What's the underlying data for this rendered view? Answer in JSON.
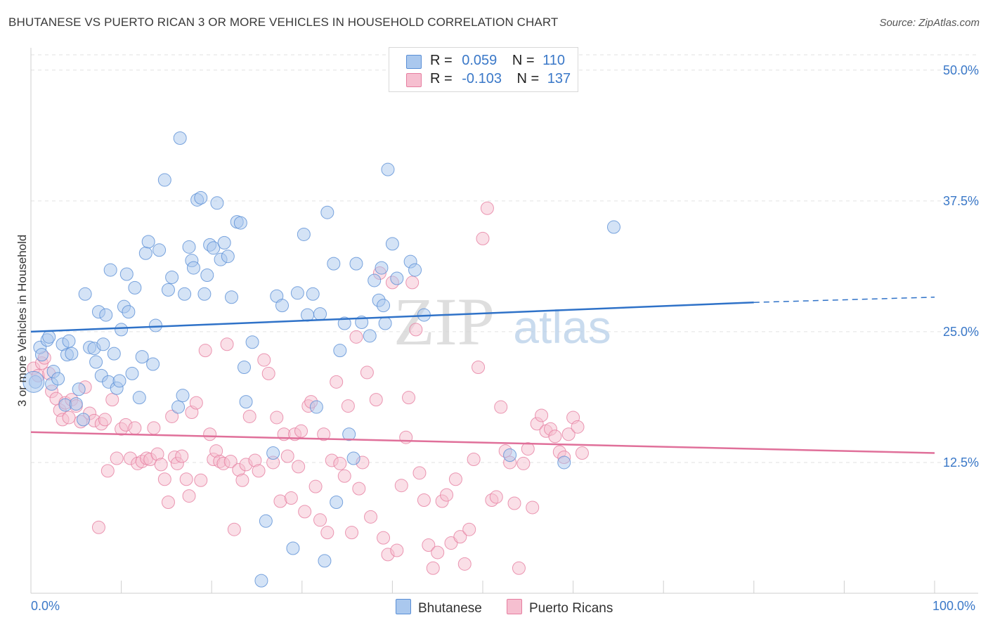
{
  "title": "BHUTANESE VS PUERTO RICAN 3 OR MORE VEHICLES IN HOUSEHOLD CORRELATION CHART",
  "source": "Source: ZipAtlas.com",
  "watermark": {
    "zip": "ZIP",
    "atlas": "atlas"
  },
  "legend": {
    "rows": [
      {
        "r_label": "R =",
        "r_value": "0.059",
        "n_label": "N =",
        "n_value": "110"
      },
      {
        "r_label": "R =",
        "r_value": "-0.103",
        "n_label": "N =",
        "n_value": "137"
      }
    ]
  },
  "colors": {
    "bhutanese_fill": "#aac8ee",
    "bhutanese_stroke": "#5a8fd6",
    "bhutanese_line": "#2f72c8",
    "puerto_fill": "#f6bfd0",
    "puerto_stroke": "#e67ea0",
    "puerto_line": "#e0709a",
    "axis_label": "#3a78c8",
    "grid": "#e2e2e2"
  },
  "chart_data": {
    "type": "scatter",
    "title": "BHUTANESE VS PUERTO RICAN 3 OR MORE VEHICLES IN HOUSEHOLD CORRELATION CHART",
    "xlabel": "",
    "ylabel": "3 or more Vehicles in Household",
    "xlim": [
      0,
      100
    ],
    "ylim": [
      0,
      52
    ],
    "x_tick_labels": [
      "0.0%",
      "100.0%"
    ],
    "y_ticks": [
      12.5,
      25.0,
      37.5,
      50.0
    ],
    "y_tick_labels": [
      "12.5%",
      "25.0%",
      "37.5%",
      "50.0%"
    ],
    "grid": true,
    "legend_position": "top-center",
    "series": [
      {
        "name": "Bhutanese",
        "r": 0.059,
        "n": 110,
        "trend": {
          "x": [
            0,
            80
          ],
          "y": [
            25.0,
            27.8
          ],
          "dashed_to": [
            100,
            28.3
          ]
        },
        "points": [
          [
            0.5,
            20.2
          ],
          [
            1.0,
            23.5
          ],
          [
            1.2,
            22.8
          ],
          [
            1.8,
            24.2
          ],
          [
            2.0,
            24.5
          ],
          [
            2.5,
            21.2
          ],
          [
            2.3,
            20.0
          ],
          [
            3.0,
            20.5
          ],
          [
            3.5,
            23.8
          ],
          [
            3.8,
            18.0
          ],
          [
            4.0,
            22.8
          ],
          [
            4.2,
            24.1
          ],
          [
            4.5,
            22.9
          ],
          [
            5.0,
            18.1
          ],
          [
            5.3,
            19.5
          ],
          [
            5.8,
            16.6
          ],
          [
            6.0,
            28.6
          ],
          [
            6.5,
            23.5
          ],
          [
            7.0,
            23.4
          ],
          [
            7.2,
            22.1
          ],
          [
            7.5,
            26.9
          ],
          [
            7.8,
            20.8
          ],
          [
            8.0,
            23.8
          ],
          [
            8.3,
            26.6
          ],
          [
            8.6,
            20.2
          ],
          [
            8.8,
            30.9
          ],
          [
            9.2,
            22.9
          ],
          [
            9.5,
            19.6
          ],
          [
            9.8,
            20.3
          ],
          [
            10.0,
            25.2
          ],
          [
            10.3,
            27.4
          ],
          [
            10.6,
            30.5
          ],
          [
            10.8,
            26.9
          ],
          [
            11.2,
            21.0
          ],
          [
            11.5,
            29.2
          ],
          [
            12.0,
            18.7
          ],
          [
            12.3,
            22.6
          ],
          [
            12.7,
            32.5
          ],
          [
            13.0,
            33.6
          ],
          [
            13.5,
            21.9
          ],
          [
            13.8,
            25.6
          ],
          [
            14.2,
            32.8
          ],
          [
            14.8,
            39.5
          ],
          [
            15.2,
            29.0
          ],
          [
            15.6,
            30.2
          ],
          [
            16.3,
            17.8
          ],
          [
            16.5,
            43.5
          ],
          [
            16.8,
            18.9
          ],
          [
            17.0,
            28.6
          ],
          [
            17.5,
            33.1
          ],
          [
            17.8,
            31.8
          ],
          [
            18.0,
            31.1
          ],
          [
            18.4,
            37.6
          ],
          [
            18.8,
            37.8
          ],
          [
            19.2,
            28.6
          ],
          [
            19.5,
            30.4
          ],
          [
            19.8,
            33.3
          ],
          [
            20.2,
            33.0
          ],
          [
            20.6,
            37.3
          ],
          [
            21.0,
            31.9
          ],
          [
            21.4,
            33.5
          ],
          [
            21.8,
            32.2
          ],
          [
            22.2,
            28.3
          ],
          [
            22.8,
            35.5
          ],
          [
            23.2,
            35.4
          ],
          [
            23.6,
            21.6
          ],
          [
            23.8,
            18.3
          ],
          [
            24.5,
            24.0
          ],
          [
            25.5,
            1.2
          ],
          [
            26.0,
            6.9
          ],
          [
            26.8,
            13.4
          ],
          [
            27.2,
            28.4
          ],
          [
            27.8,
            27.5
          ],
          [
            29.0,
            4.3
          ],
          [
            29.5,
            28.7
          ],
          [
            30.2,
            34.3
          ],
          [
            30.6,
            26.6
          ],
          [
            31.2,
            28.6
          ],
          [
            31.6,
            17.8
          ],
          [
            32.0,
            26.7
          ],
          [
            32.5,
            3.1
          ],
          [
            32.8,
            36.4
          ],
          [
            33.8,
            8.7
          ],
          [
            33.5,
            31.5
          ],
          [
            34.2,
            23.2
          ],
          [
            34.7,
            25.8
          ],
          [
            35.2,
            15.2
          ],
          [
            35.7,
            12.9
          ],
          [
            36.0,
            31.5
          ],
          [
            36.6,
            25.9
          ],
          [
            37.5,
            24.6
          ],
          [
            38.0,
            29.9
          ],
          [
            38.5,
            28.0
          ],
          [
            38.8,
            31.1
          ],
          [
            39.0,
            27.5
          ],
          [
            39.2,
            25.8
          ],
          [
            39.5,
            40.5
          ],
          [
            40.0,
            33.4
          ],
          [
            40.5,
            30.1
          ],
          [
            42.0,
            31.7
          ],
          [
            42.5,
            30.9
          ],
          [
            43.5,
            26.6
          ],
          [
            53.0,
            13.2
          ],
          [
            59.0,
            12.5
          ],
          [
            64.5,
            35.0
          ]
        ]
      },
      {
        "name": "Puerto Ricans",
        "r": -0.103,
        "n": 137,
        "trend": {
          "x": [
            0,
            100
          ],
          "y": [
            15.4,
            13.4
          ]
        },
        "points": [
          [
            0.3,
            21.5
          ],
          [
            0.8,
            20.8
          ],
          [
            1.2,
            22.0
          ],
          [
            1.5,
            22.5
          ],
          [
            2.0,
            21.0
          ],
          [
            2.3,
            19.3
          ],
          [
            2.8,
            18.6
          ],
          [
            3.2,
            17.5
          ],
          [
            3.5,
            16.6
          ],
          [
            3.8,
            18.2
          ],
          [
            4.2,
            16.8
          ],
          [
            4.5,
            18.5
          ],
          [
            5.0,
            17.9
          ],
          [
            5.5,
            16.4
          ],
          [
            6.0,
            19.7
          ],
          [
            6.5,
            17.2
          ],
          [
            7.0,
            16.5
          ],
          [
            7.5,
            6.3
          ],
          [
            7.8,
            16.2
          ],
          [
            8.2,
            16.6
          ],
          [
            8.5,
            11.7
          ],
          [
            9.0,
            18.5
          ],
          [
            9.5,
            12.9
          ],
          [
            10.0,
            15.7
          ],
          [
            10.5,
            16.1
          ],
          [
            11.0,
            12.9
          ],
          [
            11.5,
            15.8
          ],
          [
            11.8,
            12.4
          ],
          [
            12.3,
            12.6
          ],
          [
            12.8,
            12.9
          ],
          [
            13.2,
            12.8
          ],
          [
            13.6,
            15.8
          ],
          [
            14.0,
            13.3
          ],
          [
            14.4,
            12.3
          ],
          [
            14.8,
            10.9
          ],
          [
            15.2,
            8.7
          ],
          [
            15.6,
            16.9
          ],
          [
            15.9,
            13.0
          ],
          [
            16.2,
            12.4
          ],
          [
            16.7,
            13.1
          ],
          [
            17.2,
            10.9
          ],
          [
            17.5,
            9.3
          ],
          [
            17.8,
            17.3
          ],
          [
            18.3,
            18.2
          ],
          [
            18.8,
            10.8
          ],
          [
            19.3,
            23.2
          ],
          [
            19.8,
            15.2
          ],
          [
            20.2,
            12.8
          ],
          [
            20.5,
            13.6
          ],
          [
            20.9,
            12.6
          ],
          [
            21.3,
            12.4
          ],
          [
            21.7,
            23.8
          ],
          [
            22.1,
            12.6
          ],
          [
            22.5,
            6.1
          ],
          [
            23.0,
            11.8
          ],
          [
            23.4,
            10.8
          ],
          [
            23.8,
            12.3
          ],
          [
            24.2,
            16.9
          ],
          [
            24.8,
            12.7
          ],
          [
            25.2,
            11.7
          ],
          [
            25.8,
            22.3
          ],
          [
            26.3,
            21.0
          ],
          [
            26.8,
            12.5
          ],
          [
            27.2,
            16.8
          ],
          [
            27.6,
            8.8
          ],
          [
            28.0,
            15.2
          ],
          [
            28.4,
            13.1
          ],
          [
            28.8,
            9.1
          ],
          [
            29.2,
            15.2
          ],
          [
            29.6,
            12.1
          ],
          [
            29.9,
            15.5
          ],
          [
            30.3,
            7.8
          ],
          [
            30.7,
            17.9
          ],
          [
            31.0,
            18.3
          ],
          [
            31.5,
            10.2
          ],
          [
            32.0,
            7.0
          ],
          [
            32.4,
            15.2
          ],
          [
            32.8,
            5.8
          ],
          [
            33.3,
            12.7
          ],
          [
            33.8,
            20.2
          ],
          [
            34.2,
            12.4
          ],
          [
            34.7,
            11.2
          ],
          [
            35.1,
            17.9
          ],
          [
            35.5,
            5.8
          ],
          [
            36.0,
            24.5
          ],
          [
            36.3,
            10.0
          ],
          [
            36.7,
            12.5
          ],
          [
            37.2,
            21.1
          ],
          [
            37.6,
            7.3
          ],
          [
            38.2,
            18.5
          ],
          [
            38.6,
            30.6
          ],
          [
            39.0,
            5.3
          ],
          [
            39.5,
            3.7
          ],
          [
            40.0,
            29.7
          ],
          [
            40.5,
            4.1
          ],
          [
            41.0,
            10.3
          ],
          [
            41.5,
            14.9
          ],
          [
            41.8,
            18.7
          ],
          [
            42.2,
            29.7
          ],
          [
            42.6,
            25.2
          ],
          [
            43.0,
            11.5
          ],
          [
            43.5,
            8.9
          ],
          [
            44.0,
            4.6
          ],
          [
            44.5,
            2.4
          ],
          [
            45.0,
            3.9
          ],
          [
            45.5,
            8.8
          ],
          [
            46.0,
            9.4
          ],
          [
            46.5,
            4.8
          ],
          [
            47.0,
            10.9
          ],
          [
            47.5,
            5.4
          ],
          [
            48.0,
            2.8
          ],
          [
            48.5,
            6.1
          ],
          [
            49.0,
            12.8
          ],
          [
            49.5,
            21.6
          ],
          [
            50.0,
            33.9
          ],
          [
            50.5,
            36.8
          ],
          [
            51.0,
            8.9
          ],
          [
            51.5,
            9.2
          ],
          [
            52.0,
            17.8
          ],
          [
            52.5,
            13.6
          ],
          [
            53.0,
            12.5
          ],
          [
            53.5,
            8.6
          ],
          [
            54.0,
            2.4
          ],
          [
            54.5,
            12.4
          ],
          [
            55.0,
            13.8
          ],
          [
            55.5,
            8.2
          ],
          [
            56.0,
            16.2
          ],
          [
            56.5,
            17.0
          ],
          [
            57.0,
            15.5
          ],
          [
            57.5,
            15.7
          ],
          [
            58.0,
            15.0
          ],
          [
            58.5,
            13.5
          ],
          [
            59.0,
            13.0
          ],
          [
            59.5,
            15.2
          ],
          [
            60.0,
            16.8
          ],
          [
            60.5,
            15.9
          ],
          [
            61.0,
            13.4
          ]
        ]
      }
    ]
  },
  "bottom_legend": [
    "Bhutanese",
    "Puerto Ricans"
  ]
}
